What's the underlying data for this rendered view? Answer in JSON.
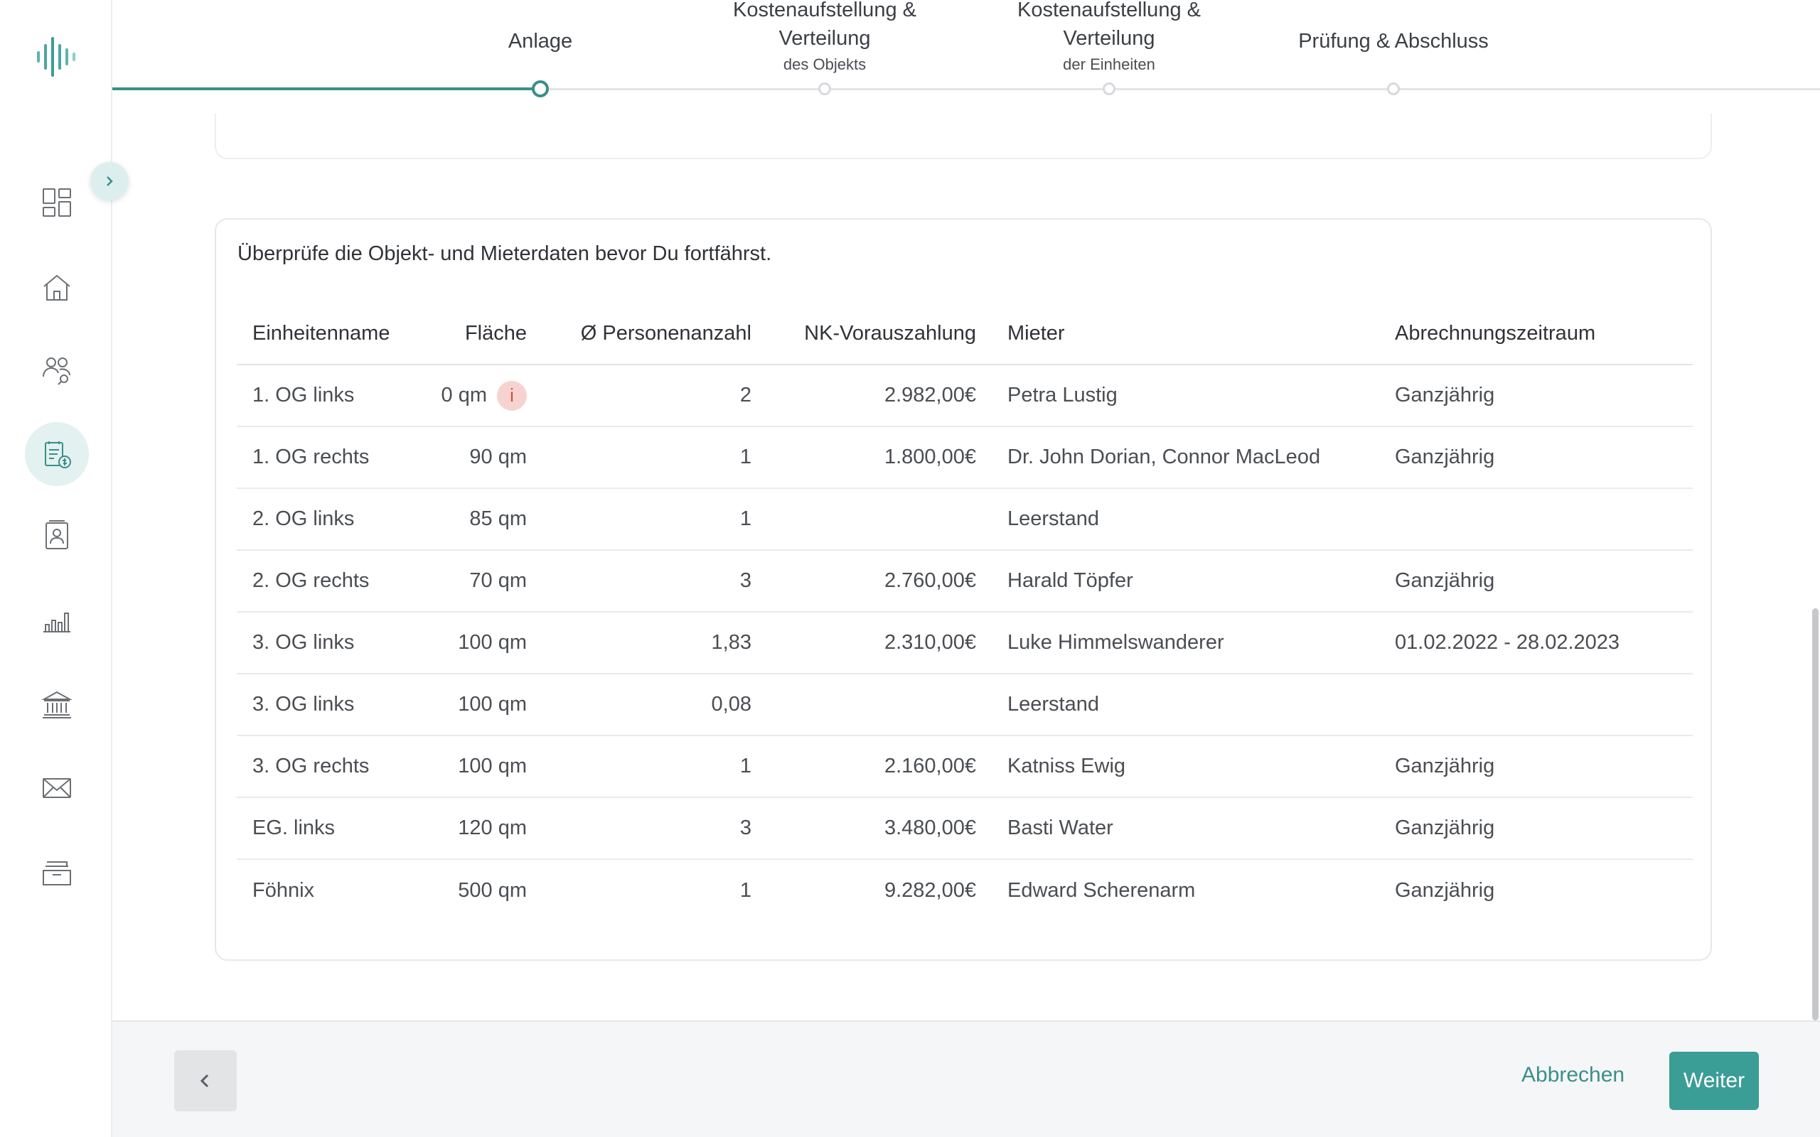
{
  "stepper": {
    "steps": [
      {
        "title": "Anlage",
        "sub": ""
      },
      {
        "title": "Kostenaufstellung & Verteilung",
        "sub": "des Objekts"
      },
      {
        "title": "Kostenaufstellung & Verteilung",
        "sub": "der Einheiten"
      },
      {
        "title": "Prüfung & Abschluss",
        "sub": ""
      }
    ],
    "active_index": 0
  },
  "sidebar": {
    "items": [
      {
        "icon": "dashboard-icon"
      },
      {
        "icon": "home-icon"
      },
      {
        "icon": "tenants-icon"
      },
      {
        "icon": "billing-icon",
        "active": true
      },
      {
        "icon": "contacts-icon"
      },
      {
        "icon": "chart-icon"
      },
      {
        "icon": "bank-icon"
      },
      {
        "icon": "mail-icon"
      },
      {
        "icon": "archive-icon"
      }
    ]
  },
  "card": {
    "intro": "Überprüfe die Objekt- und Mieterdaten bevor Du fortfährst.",
    "columns": [
      "Einheitenname",
      "Fläche",
      "Ø Personenanzahl",
      "NK-Vorauszahlung",
      "Mieter",
      "Abrechnungszeitraum"
    ],
    "rows": [
      {
        "name": "1. OG links",
        "area": "0 qm",
        "persons": "2",
        "advance": "2.982,00€",
        "tenant": "Petra Lustig",
        "period": "Ganzjährig",
        "warn": "i"
      },
      {
        "name": "1. OG rechts",
        "area": "90 qm",
        "persons": "1",
        "advance": "1.800,00€",
        "tenant": "Dr. John Dorian, Connor MacLeod",
        "period": "Ganzjährig"
      },
      {
        "name": "2. OG links",
        "area": "85 qm",
        "persons": "1",
        "advance": "",
        "tenant": "Leerstand",
        "period": ""
      },
      {
        "name": "2. OG rechts",
        "area": "70 qm",
        "persons": "3",
        "advance": "2.760,00€",
        "tenant": "Harald Töpfer",
        "period": "Ganzjährig"
      },
      {
        "name": "3. OG links",
        "area": "100 qm",
        "persons": "1,83",
        "advance": "2.310,00€",
        "tenant": "Luke Himmelswanderer",
        "period": "01.02.2022 - 28.02.2023"
      },
      {
        "name": "3. OG links",
        "area": "100 qm",
        "persons": "0,08",
        "advance": "",
        "tenant": "Leerstand",
        "period": ""
      },
      {
        "name": "3. OG rechts",
        "area": "100 qm",
        "persons": "1",
        "advance": "2.160,00€",
        "tenant": "Katniss Ewig",
        "period": "Ganzjährig"
      },
      {
        "name": "EG. links",
        "area": "120 qm",
        "persons": "3",
        "advance": "3.480,00€",
        "tenant": "Basti Water",
        "period": "Ganzjährig"
      },
      {
        "name": "Föhnix",
        "area": "500 qm",
        "persons": "1",
        "advance": "9.282,00€",
        "tenant": "Edward Scherenarm",
        "period": "Ganzjährig"
      }
    ]
  },
  "footer": {
    "cancel_label": "Abbrechen",
    "next_label": "Weiter"
  },
  "colors": {
    "accent": "#3a9d96",
    "accent_dark": "#3a8f8b",
    "warning": "#d54a44"
  }
}
